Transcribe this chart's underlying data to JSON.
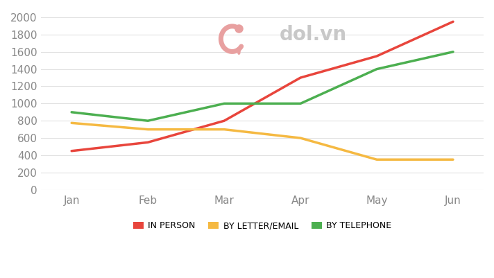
{
  "months": [
    "Jan",
    "Feb",
    "Mar",
    "Apr",
    "May",
    "Jun"
  ],
  "in_person": [
    450,
    550,
    800,
    1300,
    1550,
    1950
  ],
  "by_letter_email": [
    775,
    700,
    700,
    600,
    350,
    350
  ],
  "by_telephone": [
    900,
    800,
    1000,
    1000,
    1400,
    1600
  ],
  "colors": {
    "in_person": "#e8453c",
    "by_letter_email": "#f5b942",
    "by_telephone": "#4caf50"
  },
  "ylim": [
    0,
    2000
  ],
  "yticks": [
    0,
    200,
    400,
    600,
    800,
    1000,
    1200,
    1400,
    1600,
    1800,
    2000
  ],
  "legend_labels": [
    "IN PERSON",
    "BY LETTER/EMAIL",
    "BY TELEPHONE"
  ],
  "background_color": "#ffffff",
  "line_width": 2.5,
  "watermark_text": "dol.vn",
  "watermark_color": "#c8c8c8",
  "grid_color": "#e0e0e0",
  "tick_color": "#888888",
  "tick_fontsize": 11,
  "legend_fontsize": 9
}
